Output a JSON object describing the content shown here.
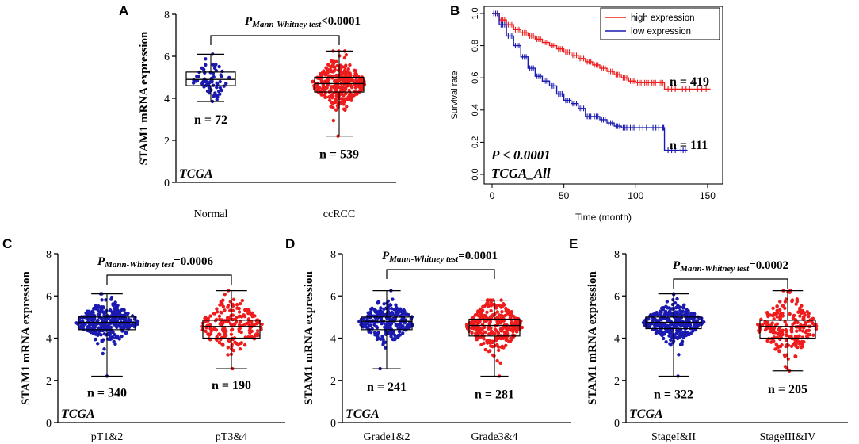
{
  "chart_data": [
    {
      "type": "scatter",
      "panel_label": "A",
      "title_prefix": "P",
      "title_sub": "Mann-Whitney test",
      "title_value": "<0.0001",
      "ylabel": "STAM1 mRNA expression",
      "ylim": [
        0,
        8
      ],
      "yticks": [
        "0",
        "2",
        "4",
        "6",
        "8"
      ],
      "watermark": "TCGA",
      "groups": [
        {
          "name": "Normal",
          "n_label": "n = 72",
          "n": 72,
          "color": "#1a1ab0",
          "min": 3.85,
          "q1": 4.6,
          "median": 4.9,
          "q3": 5.25,
          "max": 6.1,
          "data_min": 3.85,
          "data_max": 6.1
        },
        {
          "name": "ccRCC",
          "n_label": "n = 539",
          "n": 539,
          "color": "#ee1c1c",
          "min": 2.2,
          "q1": 4.3,
          "median": 4.7,
          "q3": 5.0,
          "max": 6.25,
          "data_min": 2.2,
          "data_max": 6.25
        }
      ]
    },
    {
      "type": "line",
      "panel_label": "B",
      "ylabel": "Survival rate",
      "xlabel": "Time (month)",
      "xlim": [
        0,
        155
      ],
      "ylim": [
        0,
        1.0
      ],
      "xticks": [
        "0",
        "50",
        "100",
        "150"
      ],
      "yticks": [
        "0.0",
        "0.2",
        "0.4",
        "0.6",
        "0.8",
        "1.0"
      ],
      "annotation_p": "P < 0.0001",
      "annotation_cohort": "TCGA_All",
      "series": [
        {
          "name": "high expression",
          "n_label": "n = 419",
          "color": "#ee1c1c",
          "x": [
            0,
            5,
            10,
            15,
            20,
            25,
            30,
            35,
            40,
            45,
            50,
            55,
            60,
            65,
            70,
            75,
            80,
            85,
            90,
            95,
            100,
            105,
            110,
            115,
            120,
            130,
            140,
            152
          ],
          "y": [
            1.0,
            0.96,
            0.93,
            0.9,
            0.88,
            0.86,
            0.84,
            0.82,
            0.8,
            0.78,
            0.76,
            0.74,
            0.72,
            0.7,
            0.68,
            0.66,
            0.64,
            0.62,
            0.6,
            0.58,
            0.57,
            0.57,
            0.57,
            0.57,
            0.53,
            0.53,
            0.53,
            0.53
          ]
        },
        {
          "name": "low expression",
          "n_label": "n = 111",
          "color": "#1a1ab0",
          "x": [
            0,
            5,
            10,
            15,
            20,
            25,
            30,
            35,
            40,
            45,
            50,
            55,
            60,
            65,
            70,
            75,
            80,
            85,
            90,
            95,
            100,
            110,
            118,
            120,
            130,
            136
          ],
          "y": [
            1.0,
            0.93,
            0.86,
            0.8,
            0.73,
            0.66,
            0.61,
            0.58,
            0.55,
            0.5,
            0.46,
            0.44,
            0.41,
            0.36,
            0.36,
            0.34,
            0.32,
            0.3,
            0.29,
            0.29,
            0.29,
            0.29,
            0.29,
            0.15,
            0.15,
            0.15
          ]
        }
      ]
    },
    {
      "type": "scatter",
      "panel_label": "C",
      "title_prefix": "P",
      "title_sub": "Mann-Whitney test",
      "title_value": "=0.0006",
      "ylabel": "STAM1 mRNA expression",
      "ylim": [
        0,
        8
      ],
      "yticks": [
        "0",
        "2",
        "4",
        "6",
        "8"
      ],
      "watermark": "TCGA",
      "groups": [
        {
          "name": "pT1&2",
          "n_label": "n = 340",
          "n": 340,
          "color": "#1a1ab0",
          "min": 2.2,
          "q1": 4.4,
          "median": 4.75,
          "q3": 5.0,
          "max": 6.1,
          "data_min": 2.2,
          "data_max": 6.1
        },
        {
          "name": "pT3&4",
          "n_label": "n = 190",
          "n": 190,
          "color": "#ee1c1c",
          "min": 2.55,
          "q1": 4.0,
          "median": 4.55,
          "q3": 4.85,
          "max": 6.25,
          "data_min": 2.55,
          "data_max": 6.25
        }
      ]
    },
    {
      "type": "scatter",
      "panel_label": "D",
      "title_prefix": "P",
      "title_sub": "Mann-Whitney test",
      "title_value": "=0.0001",
      "ylabel": "STAM1 mRNA expression",
      "ylim": [
        0,
        8
      ],
      "yticks": [
        "0",
        "2",
        "4",
        "6",
        "8"
      ],
      "watermark": "TCGA",
      "groups": [
        {
          "name": "Grade1&2",
          "n_label": "n = 241",
          "n": 241,
          "color": "#1a1ab0",
          "min": 2.55,
          "q1": 4.4,
          "median": 4.8,
          "q3": 5.0,
          "max": 6.25,
          "data_min": 2.55,
          "data_max": 6.25
        },
        {
          "name": "Grade3&4",
          "n_label": "n = 281",
          "n": 281,
          "color": "#ee1c1c",
          "min": 2.2,
          "q1": 4.1,
          "median": 4.6,
          "q3": 4.9,
          "max": 5.8,
          "data_min": 2.2,
          "data_max": 5.8
        }
      ]
    },
    {
      "type": "scatter",
      "panel_label": "E",
      "title_prefix": "P",
      "title_sub": "Mann-Whitney test",
      "title_value": "=0.0002",
      "ylabel": "STAM1 mRNA expression",
      "ylim": [
        0,
        8
      ],
      "yticks": [
        "0",
        "2",
        "4",
        "6",
        "8"
      ],
      "watermark": "TCGA",
      "groups": [
        {
          "name": "StageI&II",
          "n_label": "n = 322",
          "n": 322,
          "color": "#1a1ab0",
          "min": 2.2,
          "q1": 4.45,
          "median": 4.75,
          "q3": 5.0,
          "max": 6.1,
          "data_min": 2.2,
          "data_max": 6.1
        },
        {
          "name": "StageIII&IV",
          "n_label": "n = 205",
          "n": 205,
          "color": "#ee1c1c",
          "min": 2.45,
          "q1": 4.0,
          "median": 4.55,
          "q3": 4.85,
          "max": 6.25,
          "data_min": 2.45,
          "data_max": 6.25
        }
      ]
    }
  ]
}
